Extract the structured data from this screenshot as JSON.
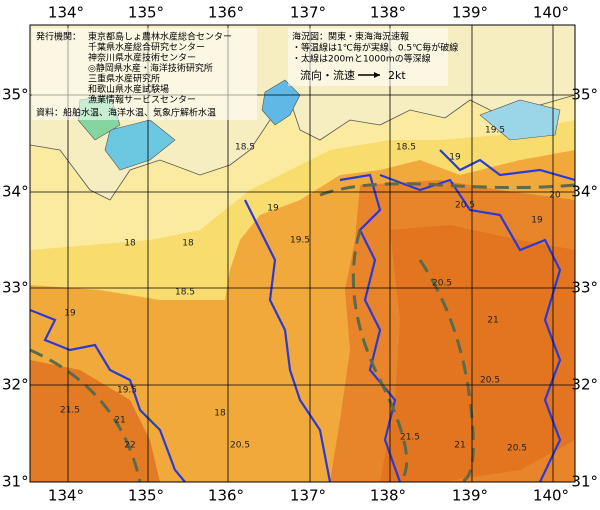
{
  "axes": {
    "longitude_labels": [
      "134°",
      "135°",
      "136°",
      "137°",
      "138°",
      "139°",
      "140°"
    ],
    "latitude_labels": [
      "35°",
      "34°",
      "33°",
      "32°",
      "31°"
    ]
  },
  "info_left": {
    "issuer_label": "発行機関：",
    "issuers": [
      "東京都島しょ農林水産総合センター",
      "千葉県水産総合研究センター",
      "神奈川県水産技術センター",
      "◎静岡県水産・海洋技術研究所",
      "三重県水産研究所",
      "和歌山県水産試験場",
      "漁業情報サービスセンター"
    ],
    "source": "資料：船舶水温、海洋水温、気象庁解析水温"
  },
  "info_right": {
    "title": "海況図：関東・東海海況速報",
    "notes": [
      "・等温線は1℃毎が実線、0.5℃毎が破線",
      "・太線は200mと1000mの等深線"
    ],
    "current_label": "流向・流速",
    "speed": "2kt"
  },
  "contour_labels": [
    "18.5",
    "18.5",
    "19",
    "19.5",
    "19",
    "19.5",
    "18",
    "18",
    "18.5",
    "19",
    "19.5",
    "18",
    "21.5",
    "21",
    "22",
    "20.5",
    "20.5",
    "21.5",
    "20.5",
    "20.5",
    "21",
    "20.5",
    "21",
    "19",
    "20"
  ]
}
